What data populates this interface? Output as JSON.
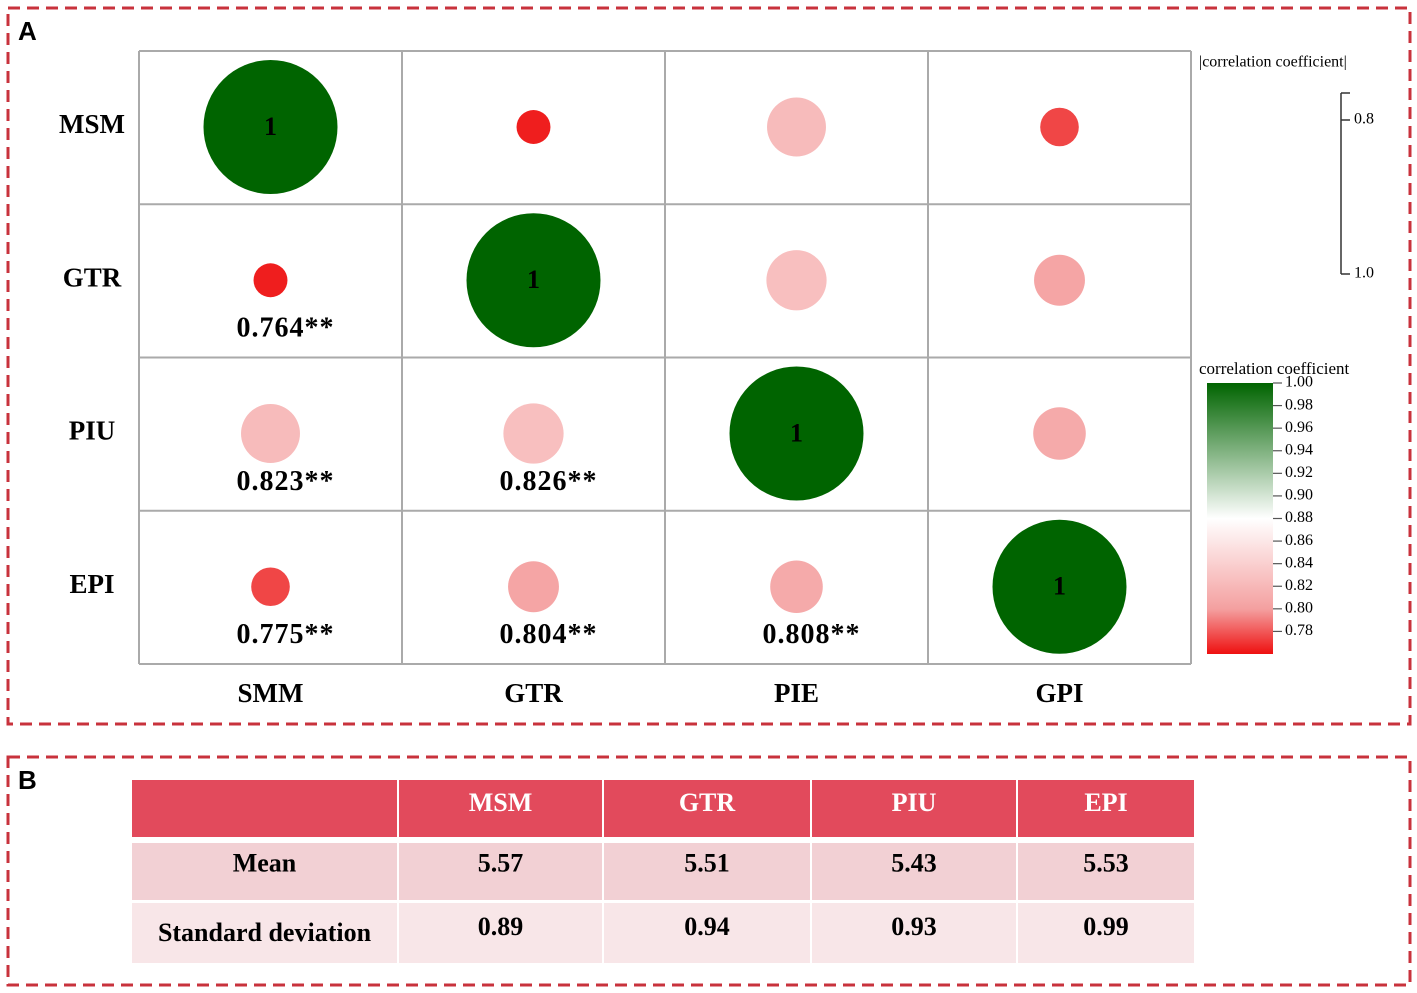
{
  "chart_data": {
    "type": "correlogram",
    "panel_label": "A",
    "row_labels": [
      "MSM",
      "GTR",
      "PIU",
      "EPI"
    ],
    "col_labels": [
      "SMM",
      "GTR",
      "PIE",
      "GPI"
    ],
    "matrix": [
      [
        1,
        0.764,
        0.823,
        0.775
      ],
      [
        0.764,
        1,
        0.826,
        0.804
      ],
      [
        0.823,
        0.826,
        1,
        0.808
      ],
      [
        0.775,
        0.804,
        0.808,
        1
      ]
    ],
    "value_labels": [
      [
        null,
        null,
        null,
        null
      ],
      [
        "0.764**",
        null,
        null,
        null
      ],
      [
        "0.823**",
        "0.826**",
        null,
        null
      ],
      [
        "0.775**",
        "0.804**",
        "0.808**",
        null
      ]
    ],
    "size_legend": {
      "title": "|correlation coefficient|",
      "ticks": [
        0.8,
        {
          "value": 1,
          "label": "1.0"
        }
      ]
    },
    "color_legend": {
      "title": "correlation coefficient",
      "lim": [
        0.76,
        1
      ],
      "ticks": [
        {
          "value": 1,
          "label": "1.00"
        },
        0.98,
        0.96,
        0.94,
        0.92,
        {
          "value": 0.9,
          "label": "0.90"
        },
        0.88,
        0.86,
        0.84,
        0.82,
        {
          "value": 0.8,
          "label": "0.80"
        },
        0.78
      ],
      "color_stops": [
        {
          "value": 0.76,
          "color": "#ee1010"
        },
        {
          "value": 0.8,
          "color": "#f4a0a0"
        },
        {
          "value": 0.88,
          "color": "#ffffff"
        },
        {
          "value": 1,
          "color": "#006400"
        }
      ]
    }
  },
  "table": {
    "panel_label": "B",
    "columns": [
      "MSM",
      "GTR",
      "PIU",
      "EPI"
    ],
    "rows": [
      {
        "label": "Mean",
        "values": [
          5.57,
          5.51,
          5.43,
          5.53
        ]
      },
      {
        "label": "Standard deviation",
        "values": [
          0.89,
          0.94,
          0.93,
          0.99
        ]
      }
    ]
  }
}
